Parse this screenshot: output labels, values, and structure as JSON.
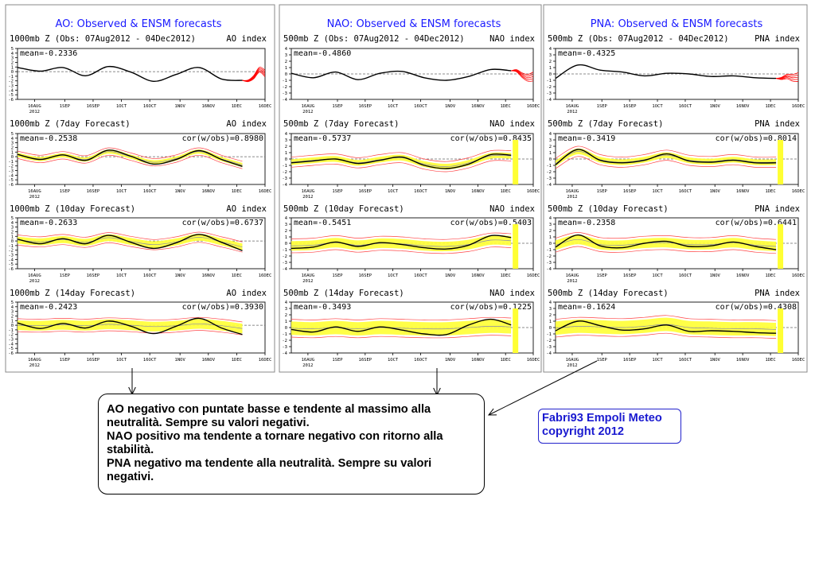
{
  "columns": [
    {
      "title": "AO: Observed & ENSM forecasts",
      "index_label": "AO index"
    },
    {
      "title": "NAO: Observed & ENSM forecasts",
      "index_label": "NAO index"
    },
    {
      "title": "PNA: Observed & ENSM forecasts",
      "index_label": "PNA index"
    }
  ],
  "x_tick_labels": [
    "16AUG",
    "1SEP",
    "16SEP",
    "1OCT",
    "16OCT",
    "1NOV",
    "16NOV",
    "1DEC",
    "16DEC"
  ],
  "x_year_label": "2012",
  "y_tick_labels_ao": [
    "5",
    "4",
    "3",
    "2",
    "1",
    "0",
    "-1",
    "-2",
    "-3",
    "-4",
    "-5",
    "-6"
  ],
  "y_tick_labels_small": [
    "4",
    "3",
    "2",
    "1",
    "0",
    "-1",
    "-2",
    "-3",
    "-4"
  ],
  "chart_data": [
    {
      "type": "line",
      "column": "AO",
      "row": "obs",
      "label": "1000mb Z (Obs: 07Aug2012 - 04Dec2012)",
      "mean": "mean=-0.2336",
      "cor": "",
      "ylim": [
        -6,
        5
      ],
      "x": [
        "2012-08-07",
        "2012-08-19",
        "2012-08-31",
        "2012-09-12",
        "2012-09-24",
        "2012-10-06",
        "2012-10-18",
        "2012-10-30",
        "2012-11-11",
        "2012-11-23",
        "2012-12-04"
      ],
      "series": [
        {
          "name": "observed",
          "values": [
            0.9,
            0.1,
            0.9,
            -0.9,
            1.1,
            -0.1,
            -2.1,
            -0.6,
            0.9,
            -1.6,
            -1.9
          ]
        }
      ],
      "forecast_end": "2012-12-16",
      "forecast_values": [
        -2.0,
        -1.2,
        0.4,
        -0.4
      ]
    },
    {
      "type": "line",
      "column": "AO",
      "row": "7day",
      "label": "1000mb Z (7day Forecast)",
      "mean": "mean=-0.2538",
      "cor": "cor(w/obs)=0.8980",
      "ylim": [
        -6,
        5
      ],
      "x": [
        "2012-08-07",
        "2012-08-19",
        "2012-08-31",
        "2012-09-12",
        "2012-09-24",
        "2012-10-06",
        "2012-10-18",
        "2012-10-30",
        "2012-11-11",
        "2012-11-23",
        "2012-12-04"
      ],
      "series": [
        {
          "name": "observed",
          "values": [
            0.5,
            -0.6,
            0.4,
            -0.8,
            1.4,
            0.1,
            -1.6,
            -0.6,
            1.3,
            -0.6,
            -2.1
          ]
        },
        {
          "name": "ensemble",
          "values": [
            0.4,
            -0.5,
            0.3,
            -0.6,
            1.1,
            0.0,
            -1.2,
            -0.4,
            1.1,
            -0.5,
            -1.8
          ]
        }
      ],
      "forecast_end": "",
      "forecast_values": []
    },
    {
      "type": "line",
      "column": "AO",
      "row": "10day",
      "label": "1000mb Z (10day Forecast)",
      "mean": "mean=-0.2633",
      "cor": "cor(w/obs)=0.6737",
      "ylim": [
        -6,
        5
      ],
      "x": [
        "2012-08-07",
        "2012-08-19",
        "2012-08-31",
        "2012-09-12",
        "2012-09-24",
        "2012-10-06",
        "2012-10-18",
        "2012-10-30",
        "2012-11-11",
        "2012-11-23",
        "2012-12-04"
      ],
      "series": [
        {
          "name": "observed",
          "values": [
            0.4,
            -0.6,
            0.5,
            -0.6,
            1.2,
            -0.3,
            -1.6,
            -0.4,
            1.4,
            -0.3,
            -2.1
          ]
        },
        {
          "name": "ensemble",
          "values": [
            0.2,
            -0.2,
            0.3,
            -0.3,
            0.7,
            -0.1,
            -0.8,
            -0.2,
            0.8,
            -0.2,
            -1.3
          ]
        }
      ],
      "forecast_end": "",
      "forecast_values": []
    },
    {
      "type": "line",
      "column": "AO",
      "row": "14day",
      "label": "1000mb Z (14day Forecast)",
      "mean": "mean=-0.2423",
      "cor": "cor(w/obs)=0.3930",
      "ylim": [
        -6,
        5
      ],
      "x": [
        "2012-08-07",
        "2012-08-19",
        "2012-08-31",
        "2012-09-12",
        "2012-09-24",
        "2012-10-06",
        "2012-10-18",
        "2012-10-30",
        "2012-11-11",
        "2012-11-23",
        "2012-12-04"
      ],
      "series": [
        {
          "name": "observed",
          "values": [
            0.5,
            -0.7,
            0.4,
            -0.6,
            0.9,
            -0.2,
            -1.8,
            -0.2,
            1.5,
            -0.6,
            -2.0
          ]
        },
        {
          "name": "ensemble",
          "values": [
            0.0,
            -0.1,
            0.1,
            -0.1,
            0.2,
            0.0,
            -0.3,
            -0.1,
            0.3,
            -0.1,
            -0.7
          ]
        }
      ],
      "forecast_end": "",
      "forecast_values": []
    },
    {
      "type": "line",
      "column": "NAO",
      "row": "obs",
      "label": "500mb Z (Obs: 07Aug2012 - 04Dec2012)",
      "mean": "mean=-0.4860",
      "cor": "",
      "ylim": [
        -4,
        4
      ],
      "x": [
        "2012-08-07",
        "2012-08-19",
        "2012-08-31",
        "2012-09-12",
        "2012-09-24",
        "2012-10-06",
        "2012-10-18",
        "2012-10-30",
        "2012-11-11",
        "2012-11-23",
        "2012-12-04"
      ],
      "series": [
        {
          "name": "observed",
          "values": [
            0.1,
            -0.6,
            0.3,
            -0.9,
            0.1,
            0.4,
            -0.6,
            -1.0,
            -0.4,
            0.7,
            0.5
          ]
        }
      ],
      "forecast_end": "2012-12-16",
      "forecast_values": [
        0.5,
        -0.2,
        -0.6,
        -0.4
      ]
    },
    {
      "type": "line",
      "column": "NAO",
      "row": "7day",
      "label": "500mb Z (7day Forecast)",
      "mean": "mean=-0.5737",
      "cor": "cor(w/obs)=0.8435",
      "ylim": [
        -4,
        4
      ],
      "x": [
        "2012-08-07",
        "2012-08-19",
        "2012-08-31",
        "2012-09-12",
        "2012-09-24",
        "2012-10-06",
        "2012-10-18",
        "2012-10-30",
        "2012-11-11",
        "2012-11-23",
        "2012-12-04"
      ],
      "series": [
        {
          "name": "observed",
          "values": [
            -0.6,
            -0.3,
            0.0,
            -0.7,
            -0.2,
            0.3,
            -1.0,
            -1.5,
            -0.8,
            0.7,
            0.6
          ]
        },
        {
          "name": "ensemble",
          "values": [
            -0.5,
            -0.2,
            0.0,
            -0.6,
            -0.1,
            0.2,
            -0.8,
            -1.2,
            -0.6,
            0.5,
            0.5
          ]
        }
      ],
      "forecast_end": "",
      "forecast_values": []
    },
    {
      "type": "line",
      "column": "NAO",
      "row": "10day",
      "label": "500mb Z (10day Forecast)",
      "mean": "mean=-0.5451",
      "cor": "cor(w/obs)=0.5403",
      "ylim": [
        -4,
        4
      ],
      "x": [
        "2012-08-07",
        "2012-08-19",
        "2012-08-31",
        "2012-09-12",
        "2012-09-24",
        "2012-10-06",
        "2012-10-18",
        "2012-10-30",
        "2012-11-11",
        "2012-11-23",
        "2012-12-04"
      ],
      "series": [
        {
          "name": "observed",
          "values": [
            -0.8,
            -0.6,
            0.2,
            -0.5,
            0.1,
            -0.2,
            -0.7,
            -0.9,
            -0.3,
            1.2,
            0.9
          ]
        },
        {
          "name": "ensemble",
          "values": [
            -0.4,
            -0.3,
            0.1,
            -0.3,
            0.0,
            -0.1,
            -0.4,
            -0.5,
            -0.2,
            0.5,
            0.4
          ]
        }
      ],
      "forecast_end": "",
      "forecast_values": []
    },
    {
      "type": "line",
      "column": "NAO",
      "row": "14day",
      "label": "500mb Z (14day Forecast)",
      "mean": "mean=-0.3493",
      "cor": "cor(w/obs)=0.1225",
      "ylim": [
        -4,
        4
      ],
      "x": [
        "2012-08-07",
        "2012-08-19",
        "2012-08-31",
        "2012-09-12",
        "2012-09-24",
        "2012-10-06",
        "2012-10-18",
        "2012-10-30",
        "2012-11-11",
        "2012-11-23",
        "2012-12-04"
      ],
      "series": [
        {
          "name": "observed",
          "values": [
            -0.3,
            -0.7,
            0.1,
            -0.6,
            0.1,
            -0.4,
            -1.0,
            -1.1,
            0.4,
            1.3,
            0.4
          ]
        },
        {
          "name": "ensemble",
          "values": [
            -0.1,
            -0.2,
            0.0,
            -0.2,
            0.0,
            -0.1,
            -0.2,
            -0.2,
            0.0,
            0.2,
            0.1
          ]
        }
      ],
      "forecast_end": "",
      "forecast_values": []
    },
    {
      "type": "line",
      "column": "PNA",
      "row": "obs",
      "label": "500mb Z (Obs: 07Aug2012 - 04Dec2012)",
      "mean": "mean=-0.4325",
      "cor": "",
      "ylim": [
        -4,
        4
      ],
      "x": [
        "2012-08-07",
        "2012-08-19",
        "2012-08-31",
        "2012-09-12",
        "2012-09-24",
        "2012-10-06",
        "2012-10-18",
        "2012-10-30",
        "2012-11-11",
        "2012-11-23",
        "2012-12-04"
      ],
      "series": [
        {
          "name": "observed",
          "values": [
            -0.7,
            1.4,
            0.6,
            0.3,
            -0.3,
            0.1,
            0.0,
            -0.4,
            -0.3,
            -0.6,
            -0.7
          ]
        }
      ],
      "forecast_end": "2012-12-16",
      "forecast_values": [
        -0.7,
        -0.4,
        -0.6,
        -0.5
      ]
    },
    {
      "type": "line",
      "column": "PNA",
      "row": "7day",
      "label": "500mb Z (7day Forecast)",
      "mean": "mean=-0.3419",
      "cor": "cor(w/obs)=0.8014",
      "ylim": [
        -4,
        4
      ],
      "x": [
        "2012-08-07",
        "2012-08-19",
        "2012-08-31",
        "2012-09-12",
        "2012-09-24",
        "2012-10-06",
        "2012-10-18",
        "2012-10-30",
        "2012-11-11",
        "2012-11-23",
        "2012-12-04"
      ],
      "series": [
        {
          "name": "observed",
          "values": [
            -0.9,
            1.5,
            -0.2,
            -0.6,
            -0.2,
            0.8,
            -0.3,
            -0.5,
            -0.2,
            -0.6,
            -0.6
          ]
        },
        {
          "name": "ensemble",
          "values": [
            -0.7,
            1.2,
            -0.1,
            -0.5,
            -0.1,
            0.6,
            -0.2,
            -0.4,
            -0.1,
            -0.5,
            -0.5
          ]
        }
      ],
      "forecast_end": "",
      "forecast_values": []
    },
    {
      "type": "line",
      "column": "PNA",
      "row": "10day",
      "label": "500mb Z (10day Forecast)",
      "mean": "mean=-0.2358",
      "cor": "cor(w/obs)=0.6441",
      "ylim": [
        -4,
        4
      ],
      "x": [
        "2012-08-07",
        "2012-08-19",
        "2012-08-31",
        "2012-09-12",
        "2012-09-24",
        "2012-10-06",
        "2012-10-18",
        "2012-10-30",
        "2012-11-11",
        "2012-11-23",
        "2012-12-04"
      ],
      "series": [
        {
          "name": "observed",
          "values": [
            -0.6,
            1.3,
            -0.4,
            -0.7,
            0.0,
            0.3,
            -0.5,
            -0.4,
            0.2,
            -0.5,
            -1.0
          ]
        },
        {
          "name": "ensemble",
          "values": [
            -0.3,
            0.6,
            -0.2,
            -0.3,
            0.0,
            0.1,
            -0.2,
            -0.2,
            0.1,
            -0.3,
            -0.5
          ]
        }
      ],
      "forecast_end": "",
      "forecast_values": []
    },
    {
      "type": "line",
      "column": "PNA",
      "row": "14day",
      "label": "500mb Z (14day Forecast)",
      "mean": "mean=-0.1624",
      "cor": "cor(w/obs)=0.4308",
      "ylim": [
        -4,
        4
      ],
      "x": [
        "2012-08-07",
        "2012-08-19",
        "2012-08-31",
        "2012-09-12",
        "2012-09-24",
        "2012-10-06",
        "2012-10-18",
        "2012-10-30",
        "2012-11-11",
        "2012-11-23",
        "2012-12-04"
      ],
      "series": [
        {
          "name": "observed",
          "values": [
            -0.5,
            1.0,
            0.3,
            -0.4,
            -0.2,
            0.4,
            -0.6,
            -0.5,
            -0.6,
            -0.8,
            -0.9
          ]
        },
        {
          "name": "ensemble",
          "values": [
            -0.1,
            0.2,
            0.1,
            0.0,
            0.2,
            0.5,
            0.0,
            -0.1,
            -0.2,
            -0.2,
            -0.3
          ]
        }
      ],
      "forecast_end": "",
      "forecast_values": []
    }
  ],
  "callout": {
    "line1": "AO negativo con puntate basse e tendente al massimo alla",
    "line2": "neutralità. Sempre su valori negativi.",
    "line3": "NAO positivo ma tendente a tornare negativo con ritorno alla",
    "line4": "stabilità.",
    "line5": "PNA negativo ma tendente alla neutralità. Sempre su valori",
    "line6": "negativi."
  },
  "credit": {
    "line1": "Fabri93 Empoli Meteo",
    "line2": "copyright 2012"
  },
  "colors": {
    "title": "#1a1aff",
    "observed": "#000000",
    "ensemble": "#ffff33",
    "members": "#ff4444",
    "forecast": "#ff0000",
    "panel_border": "#222222",
    "gridline": "#666666",
    "callout_border": "#000000",
    "credit": "#1a1ad0"
  }
}
